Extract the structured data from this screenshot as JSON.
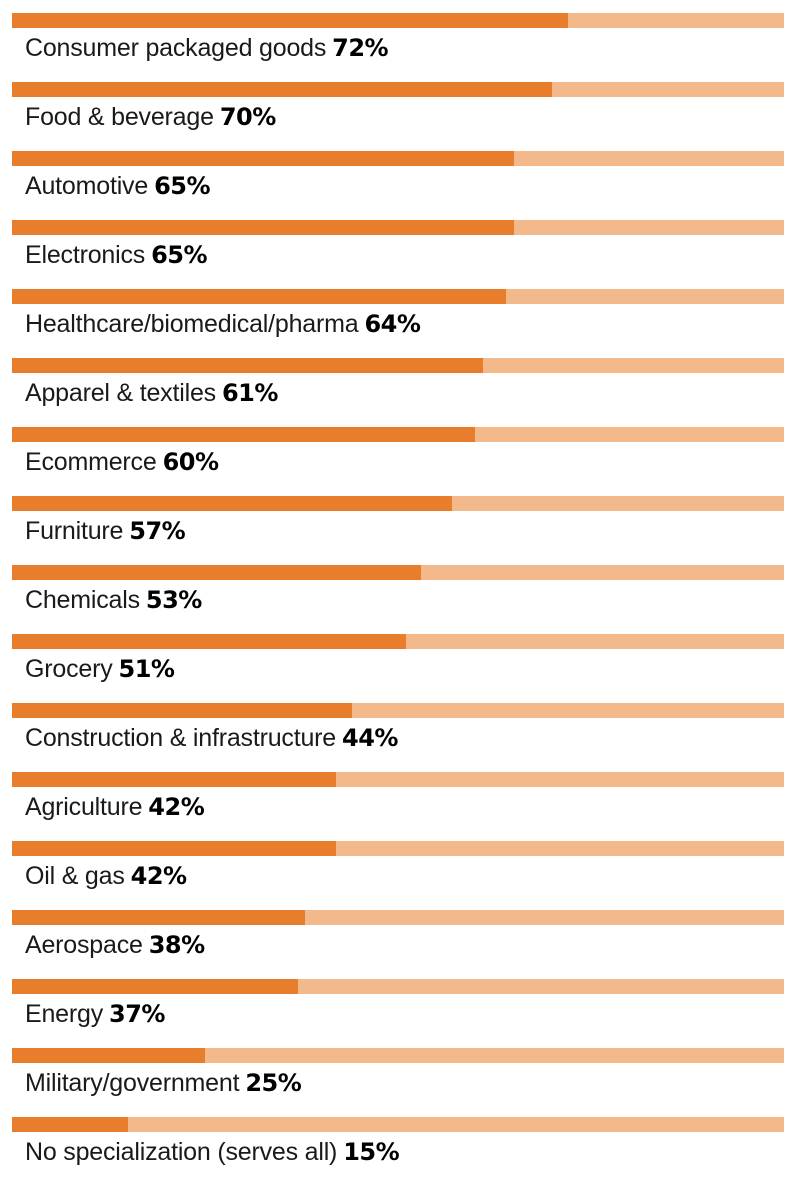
{
  "chart_data": {
    "type": "bar",
    "orientation": "horizontal",
    "xlim": [
      0,
      100
    ],
    "categories": [
      "Consumer packaged goods",
      "Food & beverage",
      "Automotive",
      "Electronics",
      "Healthcare/biomedical/pharma",
      "Apparel & textiles",
      "Ecommerce",
      "Furniture",
      "Chemicals",
      "Grocery",
      "Construction & infrastructure",
      "Agriculture",
      "Oil & gas",
      "Aerospace",
      "Energy",
      "Military/government",
      "No specialization (serves all)"
    ],
    "values": [
      72,
      70,
      65,
      65,
      64,
      61,
      60,
      57,
      53,
      51,
      44,
      42,
      42,
      38,
      37,
      25,
      15
    ],
    "value_labels": [
      "72%",
      "70%",
      "65%",
      "65%",
      "64%",
      "61%",
      "60%",
      "57%",
      "53%",
      "51%",
      "44%",
      "42%",
      "42%",
      "38%",
      "37%",
      "25%",
      "15%"
    ],
    "colors": {
      "bar_fill": "#e87d2c",
      "bar_track": "#f4b98b",
      "label_text": "#1a1a1a",
      "value_text": "#000000"
    },
    "grid": false,
    "legend": "none"
  }
}
